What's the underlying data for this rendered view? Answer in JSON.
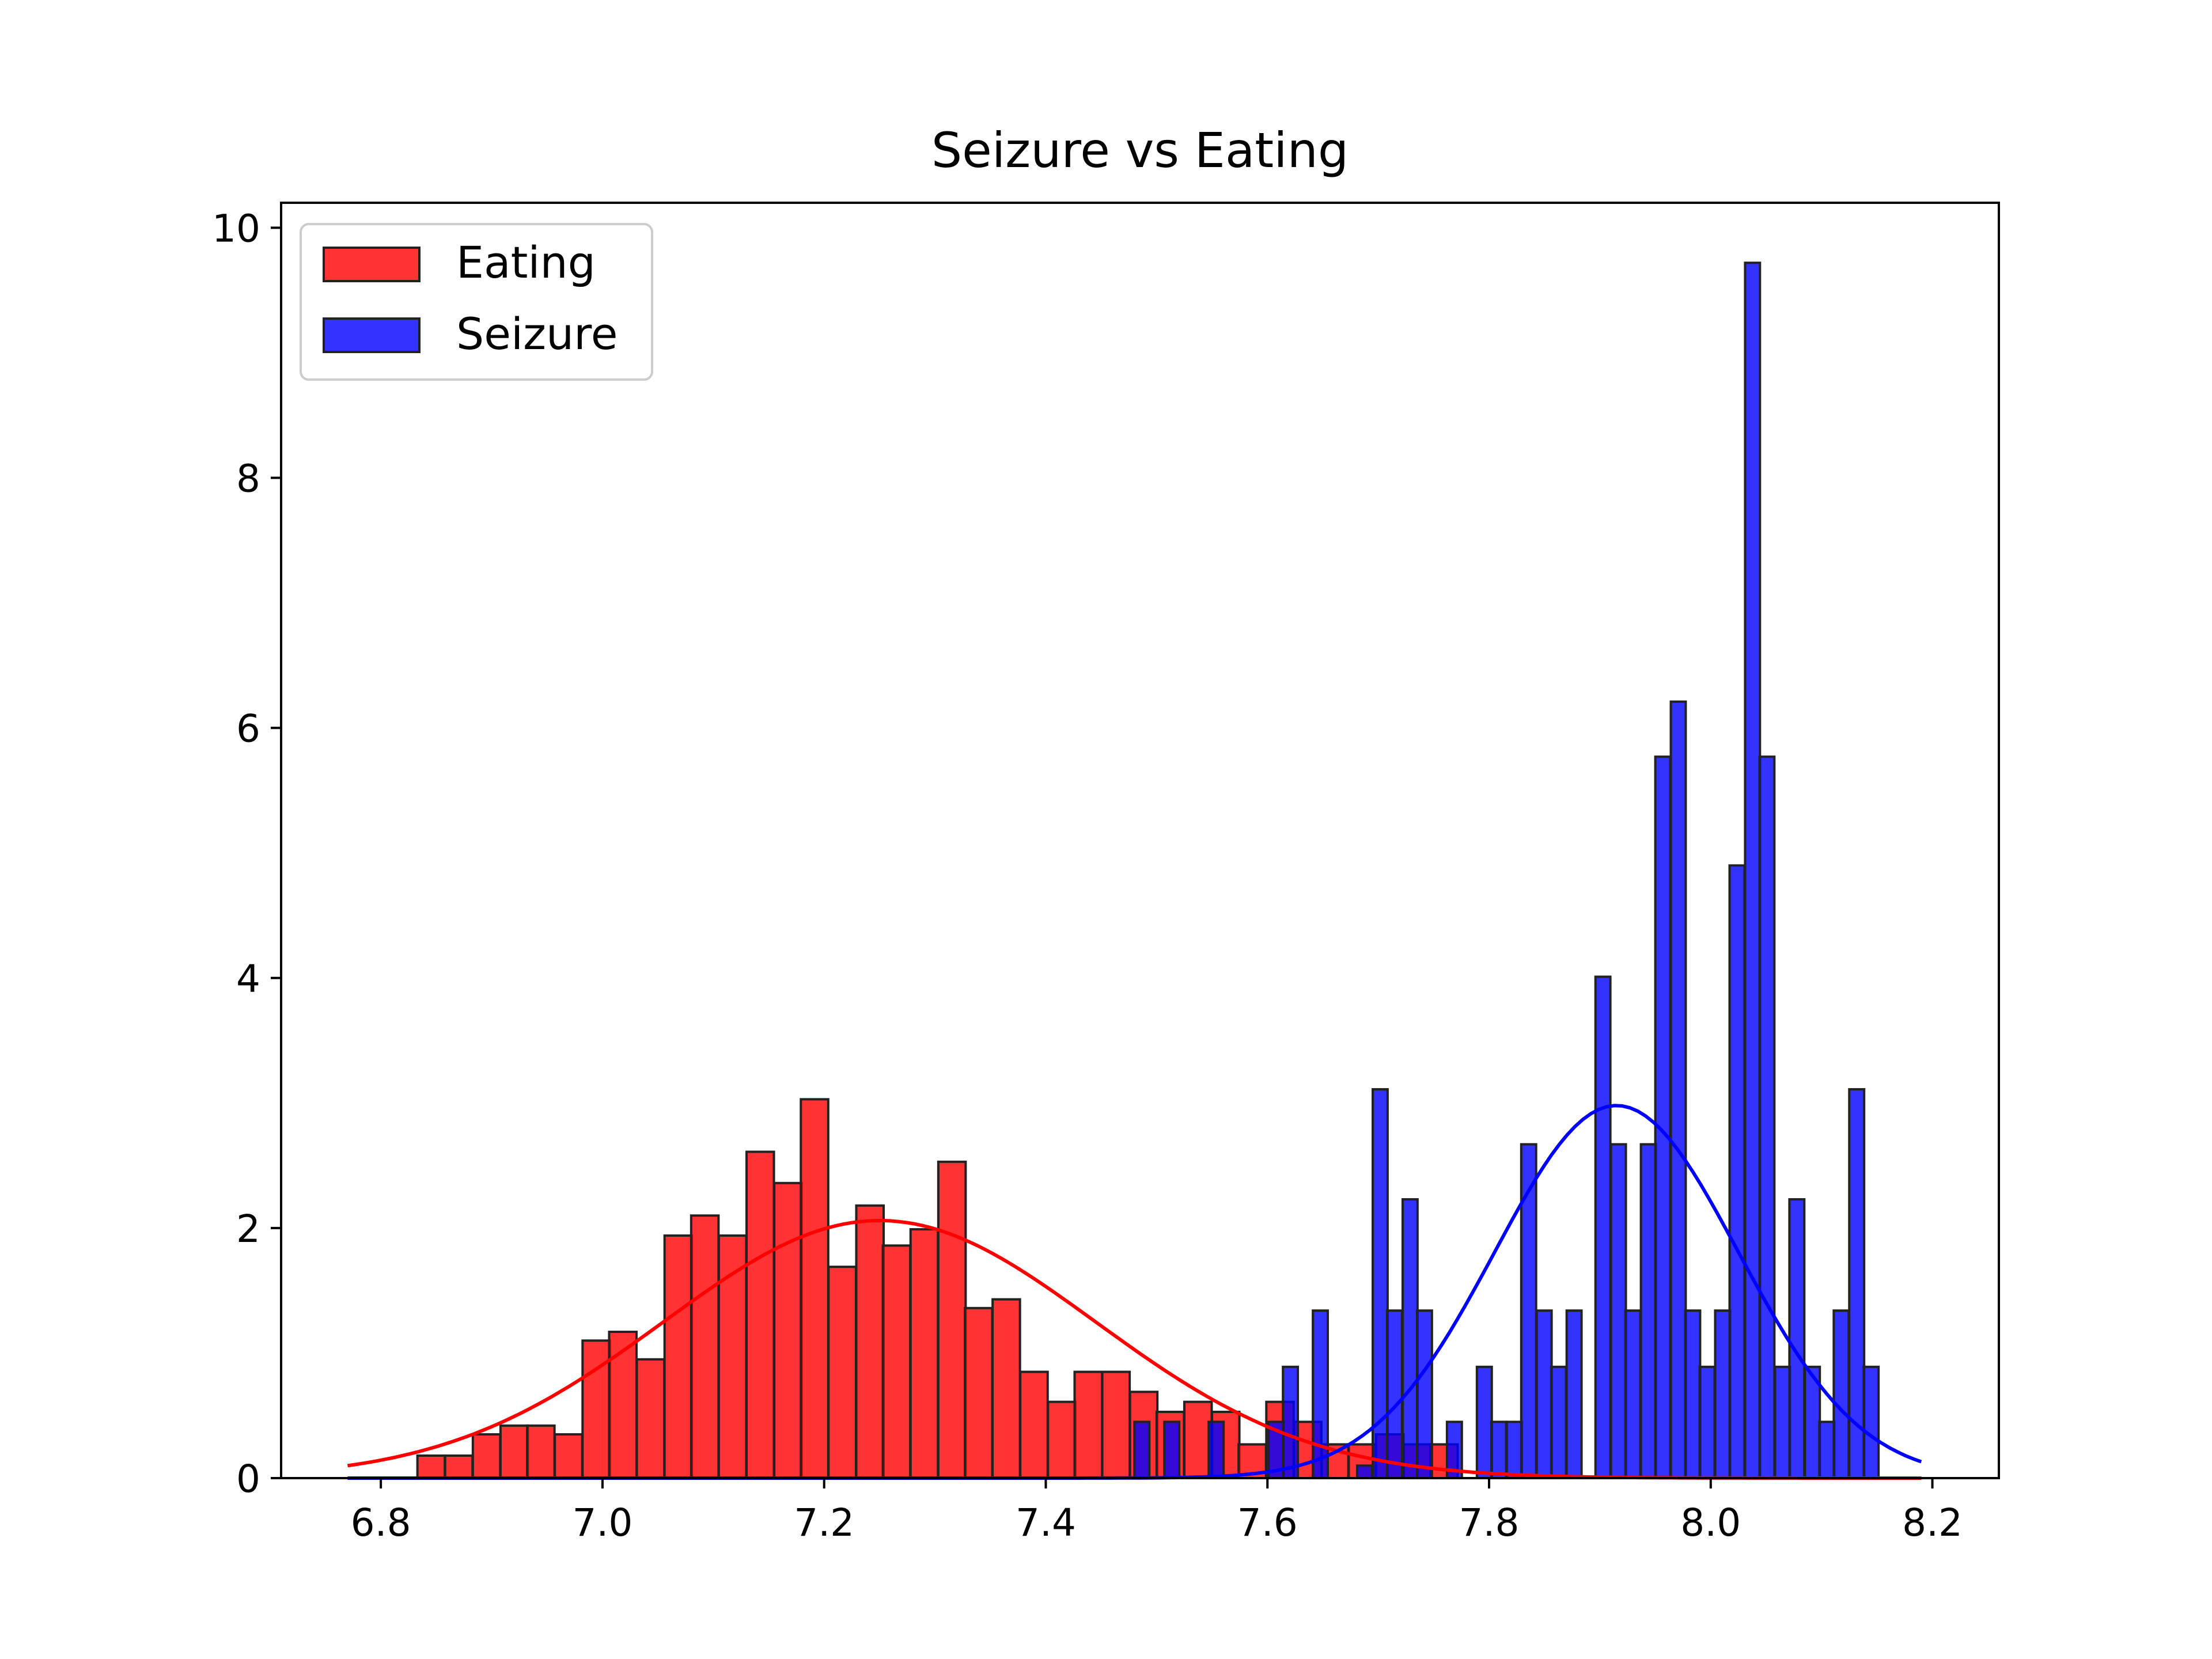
{
  "chart_data": {
    "type": "bar",
    "title": "Seizure vs Eating",
    "xlabel": "",
    "ylabel": "",
    "xlim": [
      6.71,
      8.26
    ],
    "ylim": [
      0,
      10.2
    ],
    "x_ticks": [
      "6.8",
      "7.0",
      "7.2",
      "7.4",
      "7.6",
      "7.8",
      "8.0",
      "8.2"
    ],
    "y_ticks": [
      "0",
      "2",
      "4",
      "6",
      "8",
      "10"
    ],
    "grid": false,
    "legend": {
      "placement": "top-left",
      "entries": [
        "Eating",
        "Seizure"
      ]
    },
    "series": [
      {
        "name": "Eating",
        "color": "#ff0000",
        "bin_width": 0.0247,
        "bins": [
          [
            6.833,
            0.18
          ],
          [
            6.858,
            0.18
          ],
          [
            6.883,
            0.35
          ],
          [
            6.908,
            0.42
          ],
          [
            6.932,
            0.42
          ],
          [
            6.957,
            0.35
          ],
          [
            6.982,
            1.1
          ],
          [
            7.006,
            1.17
          ],
          [
            7.031,
            0.95
          ],
          [
            7.056,
            1.94
          ],
          [
            7.08,
            2.1
          ],
          [
            7.105,
            1.94
          ],
          [
            7.13,
            2.61
          ],
          [
            7.155,
            2.36
          ],
          [
            7.179,
            3.03
          ],
          [
            7.204,
            1.69
          ],
          [
            7.229,
            2.18
          ],
          [
            7.253,
            1.86
          ],
          [
            7.278,
            1.99
          ],
          [
            7.303,
            2.53
          ],
          [
            7.327,
            1.36
          ],
          [
            7.352,
            1.43
          ],
          [
            7.377,
            0.85
          ],
          [
            7.402,
            0.61
          ],
          [
            7.426,
            0.85
          ],
          [
            7.451,
            0.85
          ],
          [
            7.476,
            0.69
          ],
          [
            7.5,
            0.53
          ],
          [
            7.525,
            0.61
          ],
          [
            7.55,
            0.53
          ],
          [
            7.574,
            0.27
          ],
          [
            7.599,
            0.61
          ],
          [
            7.624,
            0.45
          ],
          [
            7.649,
            0.27
          ],
          [
            7.673,
            0.27
          ],
          [
            7.698,
            0.35
          ],
          [
            7.723,
            0.27
          ],
          [
            7.747,
            0.27
          ]
        ],
        "curve": {
          "mean": 7.25,
          "sd": 0.195,
          "peak": 2.06,
          "x_start": 6.77,
          "x_end": 8.19
        }
      },
      {
        "name": "Seizure",
        "color": "#0000ff",
        "bin_width": 0.01345,
        "bins": [
          [
            7.48,
            0.45
          ],
          [
            7.507,
            0.45
          ],
          [
            7.547,
            0.45
          ],
          [
            7.601,
            0.45
          ],
          [
            7.614,
            0.89
          ],
          [
            7.641,
            1.34
          ],
          [
            7.681,
            0.1
          ],
          [
            7.695,
            3.11
          ],
          [
            7.708,
            1.34
          ],
          [
            7.722,
            2.23
          ],
          [
            7.735,
            1.34
          ],
          [
            7.762,
            0.45
          ],
          [
            7.789,
            0.89
          ],
          [
            7.802,
            0.45
          ],
          [
            7.816,
            0.45
          ],
          [
            7.829,
            2.67
          ],
          [
            7.843,
            1.34
          ],
          [
            7.856,
            0.89
          ],
          [
            7.87,
            1.34
          ],
          [
            7.896,
            4.01
          ],
          [
            7.91,
            2.67
          ],
          [
            7.923,
            1.34
          ],
          [
            7.937,
            2.67
          ],
          [
            7.95,
            5.77
          ],
          [
            7.964,
            6.21
          ],
          [
            7.977,
            1.34
          ],
          [
            7.99,
            0.89
          ],
          [
            8.004,
            1.34
          ],
          [
            8.017,
            4.9
          ],
          [
            8.031,
            9.72
          ],
          [
            8.044,
            5.77
          ],
          [
            8.058,
            0.89
          ],
          [
            8.071,
            2.23
          ],
          [
            8.085,
            0.89
          ],
          [
            8.098,
            0.45
          ],
          [
            8.111,
            1.34
          ],
          [
            8.125,
            3.11
          ],
          [
            8.138,
            0.89
          ]
        ],
        "curve": {
          "mean": 7.915,
          "sd": 0.11,
          "peak": 2.98,
          "x_start": 6.77,
          "x_end": 8.19
        }
      }
    ]
  }
}
